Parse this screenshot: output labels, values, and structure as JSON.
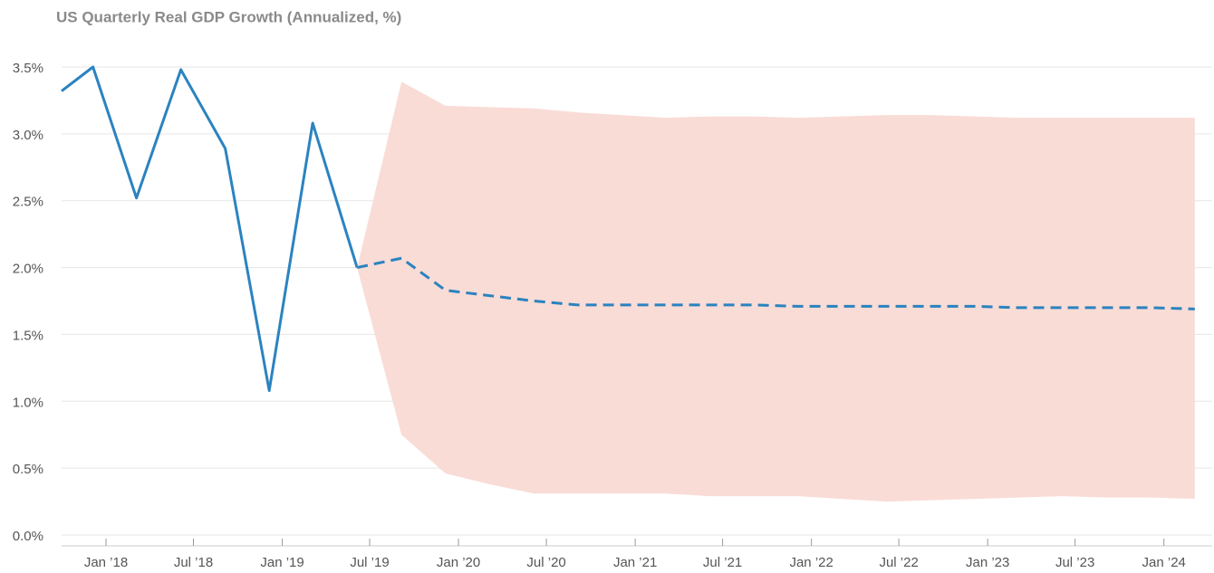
{
  "chart_data": {
    "type": "line",
    "title": "US Quarterly Real GDP Growth (Annualized, %)",
    "xlim": [
      "2017-10-01",
      "2024-04-10"
    ],
    "xticks": [
      {
        "value": "2018-01-01",
        "label": "Jan ’18"
      },
      {
        "value": "2018-07-01",
        "label": "Jul ’18"
      },
      {
        "value": "2019-01-01",
        "label": "Jan ’19"
      },
      {
        "value": "2019-07-01",
        "label": "Jul ’19"
      },
      {
        "value": "2020-01-01",
        "label": "Jan ’20"
      },
      {
        "value": "2020-07-01",
        "label": "Jul ’20"
      },
      {
        "value": "2021-01-01",
        "label": "Jan ’21"
      },
      {
        "value": "2021-07-01",
        "label": "Jul ’21"
      },
      {
        "value": "2022-01-01",
        "label": "Jan ’22"
      },
      {
        "value": "2022-07-01",
        "label": "Jul ’22"
      },
      {
        "value": "2023-01-01",
        "label": "Jan ’23"
      },
      {
        "value": "2023-07-01",
        "label": "Jul ’23"
      },
      {
        "value": "2024-01-01",
        "label": "Jan ’24"
      }
    ],
    "ylim": [
      0,
      3.5
    ],
    "yticks": [
      {
        "value": 0,
        "label": "0.0%"
      },
      {
        "value": 0.5,
        "label": "0.5%"
      },
      {
        "value": 1,
        "label": "1.0%"
      },
      {
        "value": 1.5,
        "label": "1.5%"
      },
      {
        "value": 2,
        "label": "2.0%"
      },
      {
        "value": 2.5,
        "label": "2.5%"
      },
      {
        "value": 3,
        "label": "3.0%"
      },
      {
        "value": 3.5,
        "label": "3.5%"
      }
    ],
    "grid": true,
    "series": [
      {
        "color": "#2b83c0",
        "style": "solid",
        "x": [
          "2017-10-01",
          "2017-12-05",
          "2018-03-05",
          "2018-06-05",
          "2018-09-05",
          "2018-12-05",
          "2019-03-05",
          "2019-06-05"
        ],
        "values": [
          3.32,
          3.5,
          2.52,
          3.48,
          2.89,
          1.08,
          3.08,
          2.0
        ]
      },
      {
        "color": "#2b83c0",
        "style": "dashed",
        "band_color": "#f9dcd6",
        "x": [
          "2019-06-05",
          "2019-09-05",
          "2019-12-05",
          "2020-03-05",
          "2020-06-05",
          "2020-09-05",
          "2020-12-05",
          "2021-03-05",
          "2021-06-05",
          "2021-09-05",
          "2021-12-05",
          "2022-03-05",
          "2022-06-05",
          "2022-09-05",
          "2022-12-05",
          "2023-03-05",
          "2023-06-05",
          "2023-09-05",
          "2023-12-05",
          "2024-03-05"
        ],
        "values": [
          2.0,
          2.07,
          1.83,
          1.79,
          1.75,
          1.72,
          1.72,
          1.72,
          1.72,
          1.72,
          1.71,
          1.71,
          1.71,
          1.71,
          1.71,
          1.7,
          1.7,
          1.7,
          1.7,
          1.69
        ],
        "upper": [
          2.0,
          3.39,
          3.21,
          3.2,
          3.19,
          3.16,
          3.14,
          3.12,
          3.13,
          3.13,
          3.12,
          3.13,
          3.14,
          3.14,
          3.13,
          3.12,
          3.12,
          3.12,
          3.12,
          3.12
        ],
        "lower": [
          2.0,
          0.75,
          0.46,
          0.38,
          0.31,
          0.31,
          0.31,
          0.31,
          0.29,
          0.29,
          0.29,
          0.27,
          0.25,
          0.26,
          0.27,
          0.28,
          0.29,
          0.28,
          0.28,
          0.27
        ]
      }
    ]
  }
}
